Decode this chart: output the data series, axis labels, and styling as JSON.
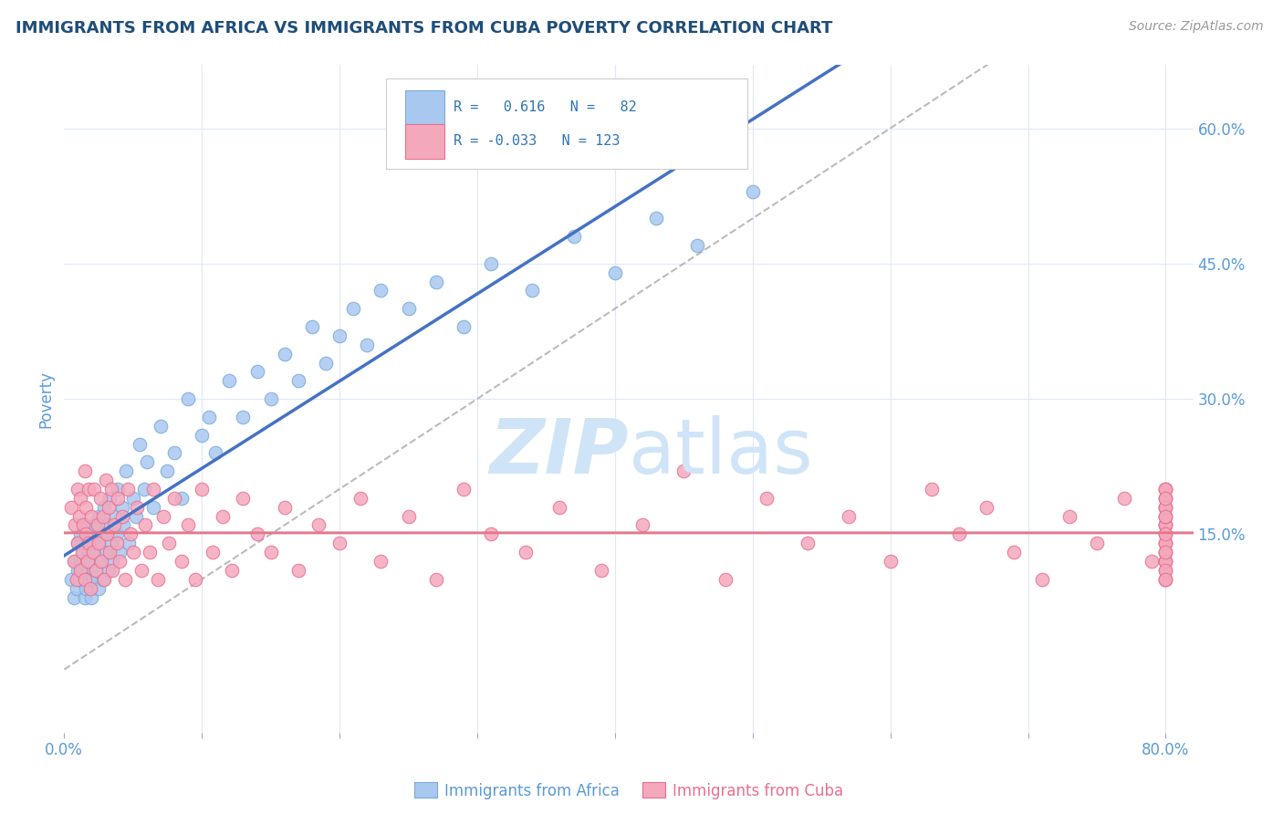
{
  "title": "IMMIGRANTS FROM AFRICA VS IMMIGRANTS FROM CUBA POVERTY CORRELATION CHART",
  "source": "Source: ZipAtlas.com",
  "ylabel": "Poverty",
  "xlim": [
    0.0,
    0.82
  ],
  "ylim": [
    -0.07,
    0.67
  ],
  "yticks_right": [
    0.15,
    0.3,
    0.45,
    0.6
  ],
  "ytick_labels_right": [
    "15.0%",
    "30.0%",
    "45.0%",
    "60.0%"
  ],
  "africa_color": "#A8C8F0",
  "africa_edge_color": "#7AAAD8",
  "cuba_color": "#F4A8BC",
  "cuba_edge_color": "#E87090",
  "africa_line_color": "#4472C4",
  "cuba_line_color": "#E8768A",
  "diag_line_color": "#AAAAAA",
  "africa_R": 0.616,
  "africa_N": 82,
  "cuba_R": -0.033,
  "cuba_N": 123,
  "watermark_color": "#D0E4F8",
  "title_color": "#1F4E79",
  "axis_label_color": "#5B9BD5",
  "legend_R_color": "#2E75B6",
  "background_color": "#FFFFFF",
  "grid_color": "#E0E8F8",
  "africa_x": [
    0.005,
    0.007,
    0.008,
    0.009,
    0.01,
    0.01,
    0.011,
    0.012,
    0.012,
    0.013,
    0.014,
    0.015,
    0.015,
    0.016,
    0.016,
    0.017,
    0.018,
    0.018,
    0.019,
    0.02,
    0.02,
    0.021,
    0.022,
    0.022,
    0.023,
    0.024,
    0.025,
    0.025,
    0.026,
    0.027,
    0.028,
    0.029,
    0.03,
    0.031,
    0.032,
    0.033,
    0.034,
    0.035,
    0.036,
    0.038,
    0.039,
    0.04,
    0.042,
    0.043,
    0.045,
    0.047,
    0.05,
    0.052,
    0.055,
    0.058,
    0.06,
    0.065,
    0.07,
    0.075,
    0.08,
    0.085,
    0.09,
    0.1,
    0.105,
    0.11,
    0.12,
    0.13,
    0.14,
    0.15,
    0.16,
    0.17,
    0.18,
    0.19,
    0.2,
    0.21,
    0.22,
    0.23,
    0.25,
    0.27,
    0.29,
    0.31,
    0.34,
    0.37,
    0.4,
    0.43,
    0.46,
    0.5
  ],
  "africa_y": [
    0.1,
    0.08,
    0.12,
    0.09,
    0.11,
    0.14,
    0.1,
    0.12,
    0.15,
    0.11,
    0.13,
    0.08,
    0.16,
    0.09,
    0.14,
    0.11,
    0.1,
    0.13,
    0.12,
    0.08,
    0.15,
    0.1,
    0.13,
    0.16,
    0.11,
    0.14,
    0.09,
    0.17,
    0.12,
    0.15,
    0.1,
    0.18,
    0.13,
    0.16,
    0.11,
    0.19,
    0.14,
    0.12,
    0.17,
    0.15,
    0.2,
    0.13,
    0.18,
    0.16,
    0.22,
    0.14,
    0.19,
    0.17,
    0.25,
    0.2,
    0.23,
    0.18,
    0.27,
    0.22,
    0.24,
    0.19,
    0.3,
    0.26,
    0.28,
    0.24,
    0.32,
    0.28,
    0.33,
    0.3,
    0.35,
    0.32,
    0.38,
    0.34,
    0.37,
    0.4,
    0.36,
    0.42,
    0.4,
    0.43,
    0.38,
    0.45,
    0.42,
    0.48,
    0.44,
    0.5,
    0.47,
    0.53
  ],
  "cuba_x": [
    0.005,
    0.007,
    0.008,
    0.009,
    0.01,
    0.01,
    0.011,
    0.012,
    0.012,
    0.013,
    0.014,
    0.015,
    0.015,
    0.016,
    0.016,
    0.017,
    0.018,
    0.018,
    0.019,
    0.02,
    0.021,
    0.022,
    0.023,
    0.024,
    0.025,
    0.026,
    0.027,
    0.028,
    0.029,
    0.03,
    0.031,
    0.032,
    0.033,
    0.034,
    0.035,
    0.036,
    0.038,
    0.039,
    0.04,
    0.042,
    0.044,
    0.046,
    0.048,
    0.05,
    0.053,
    0.056,
    0.059,
    0.062,
    0.065,
    0.068,
    0.072,
    0.076,
    0.08,
    0.085,
    0.09,
    0.095,
    0.1,
    0.108,
    0.115,
    0.122,
    0.13,
    0.14,
    0.15,
    0.16,
    0.17,
    0.185,
    0.2,
    0.215,
    0.23,
    0.25,
    0.27,
    0.29,
    0.31,
    0.335,
    0.36,
    0.39,
    0.42,
    0.45,
    0.48,
    0.51,
    0.54,
    0.57,
    0.6,
    0.63,
    0.65,
    0.67,
    0.69,
    0.71,
    0.73,
    0.75,
    0.77,
    0.79,
    0.8,
    0.8,
    0.8,
    0.8,
    0.8,
    0.8,
    0.8,
    0.8,
    0.8,
    0.8,
    0.8,
    0.8,
    0.8,
    0.8,
    0.8,
    0.8,
    0.8,
    0.8,
    0.8,
    0.8,
    0.8,
    0.8,
    0.8,
    0.8,
    0.8,
    0.8,
    0.8,
    0.8,
    0.8,
    0.8,
    0.8
  ],
  "cuba_y": [
    0.18,
    0.12,
    0.16,
    0.1,
    0.2,
    0.14,
    0.17,
    0.11,
    0.19,
    0.13,
    0.16,
    0.1,
    0.22,
    0.15,
    0.18,
    0.12,
    0.14,
    0.2,
    0.09,
    0.17,
    0.13,
    0.2,
    0.11,
    0.16,
    0.14,
    0.19,
    0.12,
    0.17,
    0.1,
    0.21,
    0.15,
    0.18,
    0.13,
    0.2,
    0.11,
    0.16,
    0.14,
    0.19,
    0.12,
    0.17,
    0.1,
    0.2,
    0.15,
    0.13,
    0.18,
    0.11,
    0.16,
    0.13,
    0.2,
    0.1,
    0.17,
    0.14,
    0.19,
    0.12,
    0.16,
    0.1,
    0.2,
    0.13,
    0.17,
    0.11,
    0.19,
    0.15,
    0.13,
    0.18,
    0.11,
    0.16,
    0.14,
    0.19,
    0.12,
    0.17,
    0.1,
    0.2,
    0.15,
    0.13,
    0.18,
    0.11,
    0.16,
    0.22,
    0.1,
    0.19,
    0.14,
    0.17,
    0.12,
    0.2,
    0.15,
    0.18,
    0.13,
    0.1,
    0.17,
    0.14,
    0.19,
    0.12,
    0.16,
    0.2,
    0.14,
    0.18,
    0.12,
    0.16,
    0.1,
    0.19,
    0.14,
    0.17,
    0.12,
    0.2,
    0.15,
    0.13,
    0.18,
    0.11,
    0.16,
    0.13,
    0.19,
    0.1,
    0.17,
    0.14,
    0.2,
    0.12,
    0.18,
    0.15,
    0.11,
    0.17,
    0.13,
    0.19,
    0.1
  ]
}
